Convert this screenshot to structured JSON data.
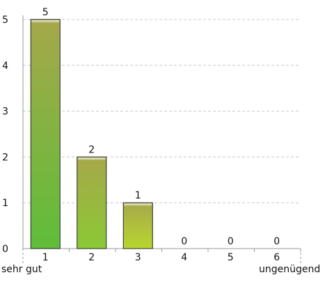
{
  "chart_data": {
    "type": "bar",
    "categories": [
      "1",
      "2",
      "3",
      "4",
      "5",
      "6"
    ],
    "values": [
      5,
      2,
      1,
      0,
      0,
      0
    ],
    "data_labels": [
      "5",
      "2",
      "1",
      "0",
      "0",
      "0"
    ],
    "title": "",
    "xlabel": "",
    "ylabel": "",
    "ylim": [
      0,
      5
    ],
    "yticks": [
      "0",
      "1",
      "2",
      "3",
      "4",
      "5"
    ],
    "grid": true,
    "x_end_labels": {
      "left": "sehr gut",
      "right": "ungenügend"
    },
    "colors": {
      "bar_top": "#a6a84a",
      "bar_bottom_start": "#5fbd3a",
      "bar_bottom_end": "#e4e22a",
      "bar_stroke": "#222222",
      "grid": "#c8c8c8",
      "axis": "#999999"
    }
  }
}
